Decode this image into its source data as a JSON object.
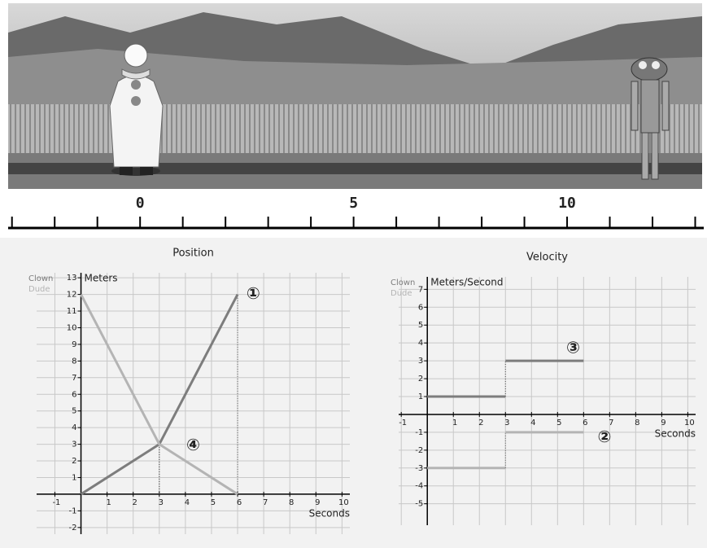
{
  "ruler": {
    "xlim": [
      -3.09,
      13.2
    ],
    "ticks": [
      -3,
      -2,
      -1,
      0,
      1,
      2,
      3,
      4,
      5,
      6,
      7,
      8,
      9,
      10,
      11,
      12,
      13
    ],
    "labels": [
      0,
      5,
      10
    ]
  },
  "chart_data": [
    {
      "type": "line",
      "title": "Position",
      "y_label": "Meters",
      "x_label": "Seconds",
      "xlim": [
        -1.7,
        10.3
      ],
      "ylim": [
        -2.4,
        13.3
      ],
      "xticks": [
        -1,
        1,
        2,
        3,
        4,
        5,
        6,
        7,
        8,
        9,
        10
      ],
      "yticks": [
        -2,
        -1,
        1,
        2,
        3,
        4,
        5,
        6,
        7,
        8,
        9,
        10,
        11,
        12,
        13
      ],
      "grid": true,
      "series": [
        {
          "name": "Clown",
          "color": "#7d7d7d",
          "x": [
            0,
            3,
            6
          ],
          "values": [
            0,
            3,
            12
          ]
        },
        {
          "name": "Dude",
          "color": "#b4b4b4",
          "x": [
            0,
            3,
            6
          ],
          "values": [
            12,
            3,
            0
          ]
        }
      ],
      "annotations": [
        {
          "text": "①",
          "x": 6.6,
          "y": 12
        },
        {
          "text": "④",
          "x": 4.3,
          "y": 2.9
        }
      ]
    },
    {
      "type": "step",
      "title": "Velocity",
      "y_label": "Meters/Second",
      "x_label": "Seconds",
      "xlim": [
        -1.1,
        10.3
      ],
      "ylim": [
        -6.2,
        7.7
      ],
      "xticks": [
        -1,
        1,
        2,
        3,
        4,
        5,
        6,
        7,
        8,
        9,
        10
      ],
      "yticks": [
        -5,
        -4,
        -3,
        -2,
        -1,
        1,
        2,
        3,
        4,
        5,
        6,
        7
      ],
      "grid": true,
      "series": [
        {
          "name": "Clown",
          "color": "#7d7d7d",
          "x_start": [
            0,
            3
          ],
          "x_end": [
            3,
            6
          ],
          "values": [
            1,
            3
          ]
        },
        {
          "name": "Dude",
          "color": "#b4b4b4",
          "x_start": [
            0,
            3
          ],
          "x_end": [
            3,
            6
          ],
          "values": [
            -3,
            -1
          ]
        }
      ],
      "annotations": [
        {
          "text": "③",
          "x": 5.6,
          "y": 3.7
        },
        {
          "text": "②",
          "x": 6.8,
          "y": -1.3
        }
      ]
    }
  ]
}
